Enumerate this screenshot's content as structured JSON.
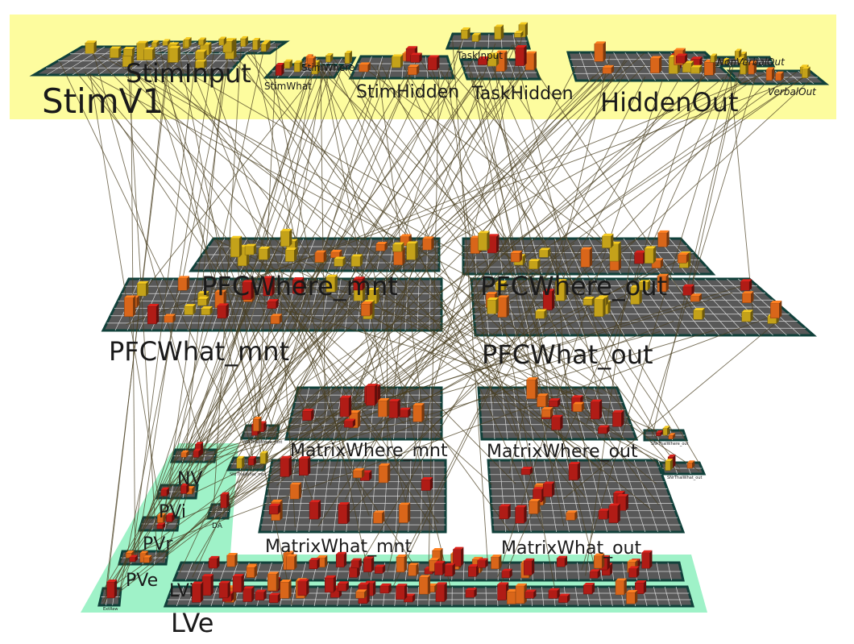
{
  "colors": {
    "top_band": "#fdfc9e",
    "bottom_band": "#9ff2c8",
    "layer_face": "#585858",
    "layer_border": "#10403a",
    "grid_line": "#d8d8d8",
    "projection": "#4a3f20",
    "unit_yellow": "#c4a21a",
    "unit_orange": "#d9661a",
    "unit_red": "#b01c16"
  },
  "layers": {
    "stim_v1": "StimV1",
    "stim_input": "StimInput",
    "stim_where": "StimWhere",
    "stim_what": "StimWhat",
    "stim_hidden": "StimHidden",
    "task_input": "TaskInput",
    "task_hidden": "TaskHidden",
    "hidden_out": "HiddenOut",
    "nonverbal_out": "NonVerbalOut",
    "verbal_out": "VerbalOut",
    "pfc_where_mnt": "PFCWhere_mnt",
    "pfc_where_out": "PFCWhere_out",
    "pfc_what_mnt": "PFCWhat_mnt",
    "pfc_what_out": "PFCWhat_out",
    "matrix_where_mnt": "MatrixWhere_mnt",
    "matrix_where_out": "MatrixWhere_out",
    "matrix_what_mnt": "MatrixWhat_mnt",
    "matrix_what_out": "MatrixWhat_out",
    "snr_thal_where_mnt": "SNrThalWhere_mnt",
    "snr_thal_where_out": "SNrThalWhere_out",
    "snr_thal_what_mnt": "SNrThalWhat_mnt",
    "snr_thal_what_out": "SNrThalWhat_out",
    "nv": "NV",
    "pvi": "PVi",
    "pvr": "PVr",
    "pve": "PVe",
    "lvi": "LVi",
    "lve": "LVe",
    "da": "DA",
    "extrew": "ExtRew"
  }
}
